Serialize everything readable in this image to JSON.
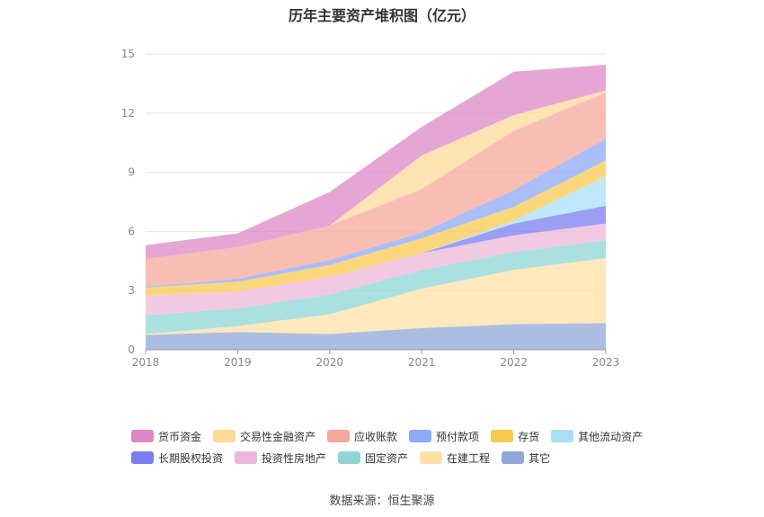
{
  "chart_data": {
    "type": "area",
    "stacked": true,
    "title": "历年主要资产堆积图（亿元）",
    "x": [
      "2018",
      "2019",
      "2020",
      "2021",
      "2022",
      "2023"
    ],
    "ylim": [
      0,
      15
    ],
    "yticks": [
      0,
      3,
      6,
      9,
      12,
      15
    ],
    "grid": true,
    "legend_position": "bottom",
    "series": [
      {
        "name": "其它",
        "color": "#8fa8d8",
        "values": [
          0.75,
          0.9,
          0.8,
          1.1,
          1.3,
          1.35
        ]
      },
      {
        "name": "在建工程",
        "color": "#ffe0a6",
        "values": [
          0.05,
          0.3,
          1.0,
          2.0,
          2.75,
          3.3
        ]
      },
      {
        "name": "固定资产",
        "color": "#8ed6d6",
        "values": [
          0.95,
          0.9,
          1.0,
          0.95,
          0.9,
          0.9
        ]
      },
      {
        "name": "投资性房地产",
        "color": "#edb7d9",
        "values": [
          1.0,
          0.85,
          0.9,
          0.85,
          0.85,
          0.85
        ]
      },
      {
        "name": "长期股权投资",
        "color": "#7a7ef0",
        "values": [
          0.0,
          0.0,
          0.0,
          0.0,
          0.6,
          0.9
        ]
      },
      {
        "name": "其他流动资产",
        "color": "#a8dff7",
        "values": [
          0.0,
          0.0,
          0.0,
          0.0,
          0.15,
          1.5
        ]
      },
      {
        "name": "存货",
        "color": "#f9c94f",
        "values": [
          0.4,
          0.5,
          0.6,
          0.75,
          0.7,
          0.8
        ]
      },
      {
        "name": "预付款项",
        "color": "#8ea9f7",
        "values": [
          0.05,
          0.15,
          0.25,
          0.3,
          0.85,
          1.1
        ]
      },
      {
        "name": "应收账款",
        "color": "#f7a89a",
        "values": [
          1.4,
          1.6,
          1.75,
          2.2,
          3.0,
          2.35
        ]
      },
      {
        "name": "交易性金融资产",
        "color": "#ffd99a",
        "values": [
          0.0,
          0.0,
          0.0,
          1.7,
          0.8,
          0.1
        ]
      },
      {
        "name": "货币资金",
        "color": "#dd88c5",
        "values": [
          0.7,
          0.7,
          1.7,
          1.45,
          2.2,
          1.3
        ]
      }
    ],
    "legend_rows": [
      [
        "货币资金",
        "交易性金融资产",
        "应收账款",
        "预付款项",
        "存货",
        "其他流动资产"
      ],
      [
        "长期股权投资",
        "投资性房地产",
        "固定资产",
        "在建工程",
        "其它"
      ]
    ]
  },
  "source_note": "数据来源：恒生聚源"
}
